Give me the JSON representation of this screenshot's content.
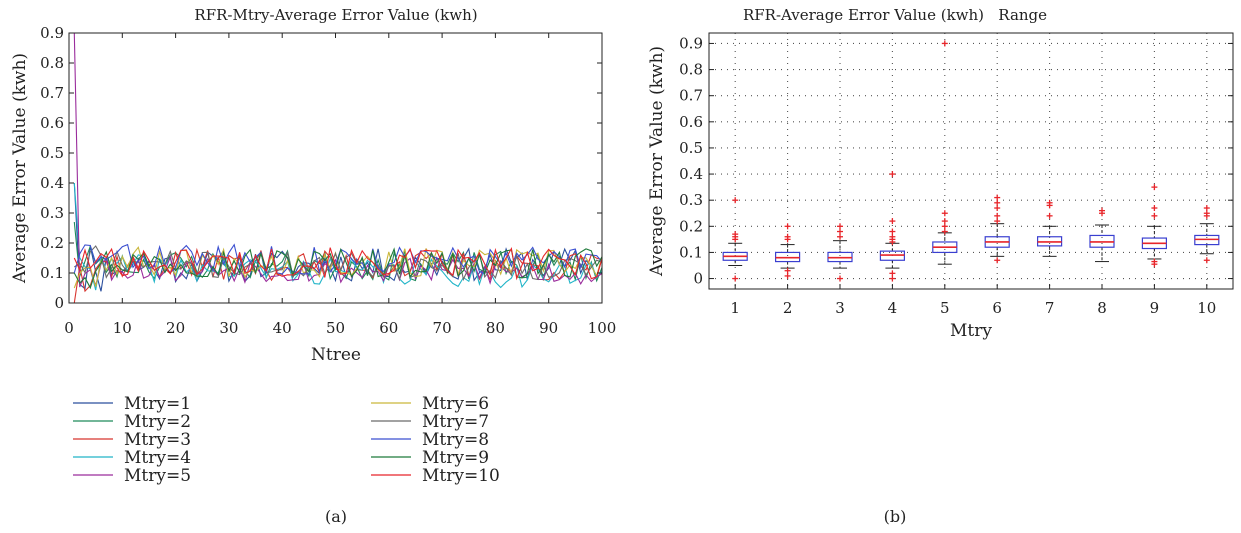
{
  "panel_captions": [
    "(a)",
    "(b)"
  ],
  "colors": {
    "axis": "#222222",
    "grid_dots": "#555555",
    "box": "#3a3fd0",
    "median": "#e8252a",
    "outlier": "#e8252a",
    "whisker": "#222222"
  },
  "chart_data": [
    {
      "type": "line",
      "title": "RFR-Mtry-Average Error Value (kwh)",
      "xlabel": "Ntree",
      "ylabel": "Average Error Value (kwh)",
      "xlim": [
        0,
        100
      ],
      "ylim": [
        0,
        0.9
      ],
      "xticks": [
        "0",
        "10",
        "20",
        "30",
        "40",
        "50",
        "60",
        "70",
        "80",
        "90",
        "100"
      ],
      "yticks": [
        "0",
        "0.1",
        "0.2",
        "0.3",
        "0.4",
        "0.5",
        "0.6",
        "0.7",
        "0.8",
        "0.9"
      ],
      "grid": false,
      "legend_placement": "below, two columns",
      "x": [
        1,
        100
      ],
      "series": [
        {
          "name": "Mtry=1",
          "color": "#2b4f9e",
          "seed": 11,
          "start": 0.4,
          "mean_early": 0.12,
          "mean_late": 0.13,
          "amp": 0.055
        },
        {
          "name": "Mtry=2",
          "color": "#1f8a5a",
          "seed": 23,
          "start": 0.27,
          "mean_early": 0.13,
          "mean_late": 0.12,
          "amp": 0.05
        },
        {
          "name": "Mtry=3",
          "color": "#d8352f",
          "seed": 37,
          "start": 0.0,
          "mean_early": 0.13,
          "mean_late": 0.12,
          "amp": 0.05
        },
        {
          "name": "Mtry=4",
          "color": "#22b5c8",
          "seed": 41,
          "start": 0.4,
          "mean_early": 0.12,
          "mean_late": 0.09,
          "amp": 0.045
        },
        {
          "name": "Mtry=5",
          "color": "#9a2c9c",
          "seed": 53,
          "start": 0.9,
          "mean_early": 0.12,
          "mean_late": 0.1,
          "amp": 0.045
        },
        {
          "name": "Mtry=6",
          "color": "#c9b63a",
          "seed": 67,
          "start": 0.05,
          "mean_early": 0.14,
          "mean_late": 0.13,
          "amp": 0.05
        },
        {
          "name": "Mtry=7",
          "color": "#6b6b6b",
          "seed": 71,
          "start": 0.12,
          "mean_early": 0.13,
          "mean_late": 0.12,
          "amp": 0.045
        },
        {
          "name": "Mtry=8",
          "color": "#3b4fd0",
          "seed": 83,
          "start": 0.1,
          "mean_early": 0.15,
          "mean_late": 0.14,
          "amp": 0.05
        },
        {
          "name": "Mtry=9",
          "color": "#1e7a3a",
          "seed": 97,
          "start": 0.1,
          "mean_early": 0.14,
          "mean_late": 0.13,
          "amp": 0.05
        },
        {
          "name": "Mtry=10",
          "color": "#e8252a",
          "seed": 101,
          "start": 0.15,
          "mean_early": 0.14,
          "mean_late": 0.13,
          "amp": 0.05
        }
      ]
    },
    {
      "type": "box",
      "title": "RFR-Average Error Value (kwh)   Range",
      "xlabel": "Mtry",
      "ylabel": "Average Error Value (kwh)",
      "ylim": [
        -0.04,
        0.94
      ],
      "categories": [
        "1",
        "2",
        "3",
        "4",
        "5",
        "6",
        "7",
        "8",
        "9",
        "10"
      ],
      "yticks": [
        "0",
        "0.1",
        "0.2",
        "0.3",
        "0.4",
        "0.5",
        "0.6",
        "0.7",
        "0.8",
        "0.9"
      ],
      "grid": true,
      "boxes": [
        {
          "min": 0.05,
          "q1": 0.07,
          "median": 0.085,
          "q3": 0.1,
          "max": 0.135,
          "outliers": [
            0.3,
            0.17,
            0.16,
            0.15,
            0.0
          ]
        },
        {
          "min": 0.04,
          "q1": 0.065,
          "median": 0.08,
          "q3": 0.1,
          "max": 0.13,
          "outliers": [
            0.2,
            0.16,
            0.15,
            0.03,
            0.01
          ]
        },
        {
          "min": 0.04,
          "q1": 0.065,
          "median": 0.08,
          "q3": 0.1,
          "max": 0.145,
          "outliers": [
            0.2,
            0.18,
            0.16,
            0.0
          ]
        },
        {
          "min": 0.04,
          "q1": 0.07,
          "median": 0.09,
          "q3": 0.105,
          "max": 0.135,
          "outliers": [
            0.4,
            0.22,
            0.18,
            0.16,
            0.15,
            0.14,
            0.02,
            0.0
          ]
        },
        {
          "min": 0.055,
          "q1": 0.1,
          "median": 0.12,
          "q3": 0.14,
          "max": 0.175,
          "outliers": [
            0.9,
            0.25,
            0.22,
            0.2,
            0.18
          ]
        },
        {
          "min": 0.085,
          "q1": 0.12,
          "median": 0.14,
          "q3": 0.16,
          "max": 0.21,
          "outliers": [
            0.31,
            0.29,
            0.27,
            0.24,
            0.22,
            0.07
          ]
        },
        {
          "min": 0.085,
          "q1": 0.125,
          "median": 0.14,
          "q3": 0.16,
          "max": 0.2,
          "outliers": [
            0.29,
            0.28,
            0.24
          ]
        },
        {
          "min": 0.065,
          "q1": 0.12,
          "median": 0.14,
          "q3": 0.165,
          "max": 0.205,
          "outliers": [
            0.26,
            0.25
          ]
        },
        {
          "min": 0.075,
          "q1": 0.115,
          "median": 0.135,
          "q3": 0.155,
          "max": 0.2,
          "outliers": [
            0.35,
            0.27,
            0.24,
            0.065,
            0.055
          ]
        },
        {
          "min": 0.095,
          "q1": 0.13,
          "median": 0.15,
          "q3": 0.165,
          "max": 0.21,
          "outliers": [
            0.27,
            0.25,
            0.24,
            0.07
          ]
        }
      ]
    }
  ]
}
